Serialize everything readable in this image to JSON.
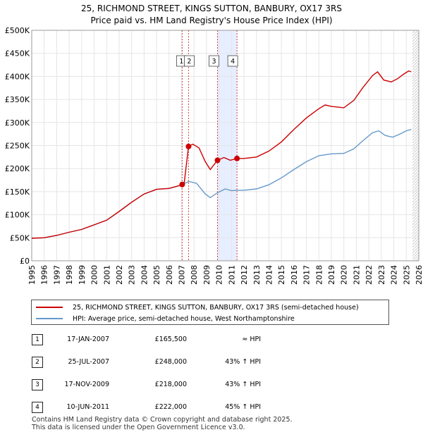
{
  "chart_data": {
    "type": "line",
    "title": "25, RICHMOND STREET, KINGS SUTTON, BANBURY, OX17 3RS",
    "subtitle": "Price paid vs. HM Land Registry's House Price Index (HPI)",
    "xlim": [
      1995,
      2026
    ],
    "ylim": [
      0,
      500000
    ],
    "x_ticks": [
      "1995",
      "1996",
      "1997",
      "1998",
      "1999",
      "2000",
      "2001",
      "2002",
      "2003",
      "2004",
      "2005",
      "2006",
      "2007",
      "2008",
      "2009",
      "2010",
      "2011",
      "2012",
      "2013",
      "2014",
      "2015",
      "2016",
      "2017",
      "2018",
      "2019",
      "2020",
      "2021",
      "2022",
      "2023",
      "2024",
      "2025",
      "2026"
    ],
    "y_ticks": [
      {
        "value": 0,
        "label": "£0"
      },
      {
        "value": 50000,
        "label": "£50K"
      },
      {
        "value": 100000,
        "label": "£100K"
      },
      {
        "value": 150000,
        "label": "£150K"
      },
      {
        "value": 200000,
        "label": "£200K"
      },
      {
        "value": 250000,
        "label": "£250K"
      },
      {
        "value": 300000,
        "label": "£300K"
      },
      {
        "value": 350000,
        "label": "£350K"
      },
      {
        "value": 400000,
        "label": "£400K"
      },
      {
        "value": 450000,
        "label": "£450K"
      },
      {
        "value": 500000,
        "label": "£500K"
      }
    ],
    "grid": true,
    "series": [
      {
        "name": "25, RICHMOND STREET, KINGS SUTTON, BANBURY, OX17 3RS (semi-detached house)",
        "color": "#cc0000",
        "points": [
          [
            1995.0,
            49000
          ],
          [
            1996.0,
            50000
          ],
          [
            1997.0,
            55000
          ],
          [
            1998.0,
            62000
          ],
          [
            1999.0,
            68000
          ],
          [
            2000.0,
            78000
          ],
          [
            2001.0,
            88000
          ],
          [
            2002.0,
            107000
          ],
          [
            2003.0,
            127000
          ],
          [
            2004.0,
            145000
          ],
          [
            2005.0,
            155000
          ],
          [
            2006.0,
            157000
          ],
          [
            2006.8,
            163000
          ],
          [
            2007.05,
            165500
          ],
          [
            2007.2,
            166000
          ],
          [
            2007.56,
            248000
          ],
          [
            2007.9,
            253000
          ],
          [
            2008.4,
            245000
          ],
          [
            2008.9,
            215000
          ],
          [
            2009.3,
            198000
          ],
          [
            2009.88,
            218000
          ],
          [
            2010.4,
            224000
          ],
          [
            2010.9,
            218000
          ],
          [
            2011.44,
            222000
          ],
          [
            2012.0,
            222000
          ],
          [
            2013.0,
            225000
          ],
          [
            2014.0,
            238000
          ],
          [
            2015.0,
            258000
          ],
          [
            2016.0,
            285000
          ],
          [
            2017.0,
            310000
          ],
          [
            2018.0,
            330000
          ],
          [
            2018.5,
            338000
          ],
          [
            2019.0,
            335000
          ],
          [
            2020.0,
            332000
          ],
          [
            2020.8,
            348000
          ],
          [
            2021.5,
            375000
          ],
          [
            2022.3,
            402000
          ],
          [
            2022.7,
            410000
          ],
          [
            2023.2,
            392000
          ],
          [
            2023.8,
            388000
          ],
          [
            2024.3,
            395000
          ],
          [
            2024.8,
            405000
          ],
          [
            2025.2,
            412000
          ],
          [
            2025.4,
            410000
          ]
        ]
      },
      {
        "name": "HPI: Average price, semi-detached house, West Northamptonshire",
        "color": "#6699cc",
        "points": [
          [
            1995.0,
            49000
          ],
          [
            1996.0,
            50000
          ],
          [
            1997.0,
            55000
          ],
          [
            1998.0,
            62000
          ],
          [
            1999.0,
            68000
          ],
          [
            2000.0,
            78000
          ],
          [
            2001.0,
            88000
          ],
          [
            2002.0,
            107000
          ],
          [
            2003.0,
            127000
          ],
          [
            2004.0,
            145000
          ],
          [
            2005.0,
            155000
          ],
          [
            2006.0,
            157000
          ],
          [
            2006.8,
            163000
          ],
          [
            2007.6,
            172000
          ],
          [
            2008.2,
            168000
          ],
          [
            2008.9,
            145000
          ],
          [
            2009.3,
            137000
          ],
          [
            2009.9,
            148000
          ],
          [
            2010.5,
            156000
          ],
          [
            2011.0,
            152000
          ],
          [
            2011.5,
            153000
          ],
          [
            2012.0,
            153000
          ],
          [
            2013.0,
            156000
          ],
          [
            2014.0,
            165000
          ],
          [
            2015.0,
            180000
          ],
          [
            2016.0,
            198000
          ],
          [
            2017.0,
            215000
          ],
          [
            2018.0,
            228000
          ],
          [
            2019.0,
            232000
          ],
          [
            2020.0,
            233000
          ],
          [
            2020.8,
            243000
          ],
          [
            2021.5,
            260000
          ],
          [
            2022.3,
            278000
          ],
          [
            2022.8,
            282000
          ],
          [
            2023.3,
            272000
          ],
          [
            2023.9,
            268000
          ],
          [
            2024.5,
            275000
          ],
          [
            2025.0,
            282000
          ],
          [
            2025.4,
            285000
          ]
        ]
      }
    ],
    "transactions": [
      {
        "num": "1",
        "x": 2007.05,
        "y": 165500,
        "date": "17-JAN-2007",
        "price": "£165,500",
        "hpi": "≈ HPI"
      },
      {
        "num": "2",
        "x": 2007.56,
        "y": 248000,
        "date": "25-JUL-2007",
        "price": "£248,000",
        "hpi": "43% ↑ HPI"
      },
      {
        "num": "3",
        "x": 2009.88,
        "y": 218000,
        "date": "17-NOV-2009",
        "price": "£218,000",
        "hpi": "43% ↑ HPI"
      },
      {
        "num": "4",
        "x": 2011.44,
        "y": 222000,
        "date": "10-JUN-2011",
        "price": "£222,000",
        "hpi": "45% ↑ HPI"
      }
    ],
    "highlight_span": [
      2009.88,
      2011.44
    ],
    "forecast_start": 2025.5
  },
  "colors": {
    "price_line": "#cc0000",
    "hpi_line": "#6699cc",
    "marker_line": "#cc4444",
    "highlight": "#e6eeff",
    "grid": "#e5e5e5"
  },
  "footer": {
    "line1": "Contains HM Land Registry data © Crown copyright and database right 2025.",
    "line2": "This data is licensed under the Open Government Licence v3.0."
  }
}
